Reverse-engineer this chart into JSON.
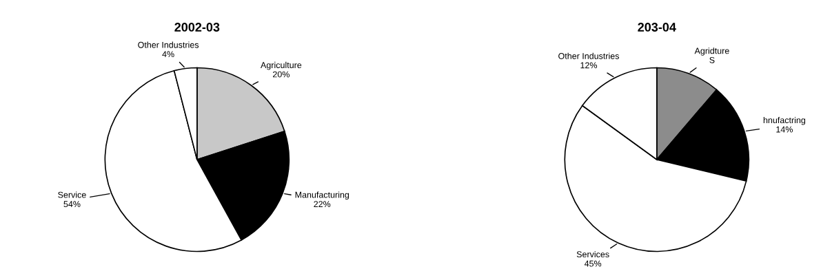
{
  "chart_data": [
    {
      "type": "pie",
      "title": "2002-03",
      "categories": [
        "Agriculture",
        "Manufacturing",
        "Service",
        "Other Industries"
      ],
      "values": [
        20,
        22,
        54,
        4
      ],
      "colors": [
        "#c8c8c8",
        "#000000",
        "#ffffff",
        "#ffffff"
      ],
      "data_labels": true,
      "value_labels": [
        "20%",
        "22%",
        "54%",
        "4%"
      ]
    },
    {
      "type": "pie",
      "title": "203-04",
      "categories": [
        "Agridture",
        "hnufactring",
        "Services",
        "Other Industries"
      ],
      "values": [
        9,
        14,
        45,
        12
      ],
      "colors": [
        "#8c8c8c",
        "#000000",
        "#ffffff",
        "#ffffff"
      ],
      "data_labels": true,
      "value_labels": [
        "S",
        "14%",
        "45%",
        "12%"
      ]
    }
  ]
}
